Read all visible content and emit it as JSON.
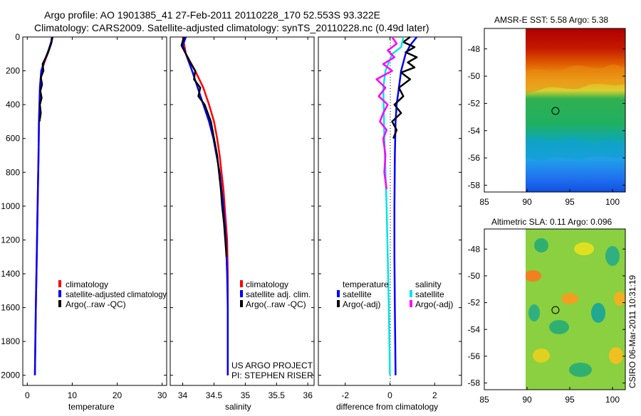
{
  "header": {
    "line1": "Argo profile: AO 1901385_41 27-Feb-2011 20110228_170 52.553S 93.322E",
    "line2": "Climatology: CARS2009. Satellite-adjusted climatology: synTS_20110228.nc (0.49d later)"
  },
  "credits": {
    "project": "US ARGO PROJECT",
    "pi": "PI: STEPHEN RISER",
    "stamp": "CSIRO 06-Mar-2011 10:31:19"
  },
  "colors": {
    "climatology": "#ff0000",
    "satellite": "#0000ff",
    "argo": "#000000",
    "salinity_sat": "#00e5e5",
    "salinity_argo": "#ff00ff"
  },
  "chart_data": [
    {
      "type": "line",
      "title": "",
      "xlabel": "temperature",
      "ylabel": "",
      "xlim": [
        -1,
        31
      ],
      "ylim": [
        2060,
        0
      ],
      "xticks": [
        0,
        10,
        20,
        30
      ],
      "yticks": [
        0,
        200,
        400,
        600,
        800,
        1000,
        1200,
        1400,
        1600,
        1800,
        2000
      ],
      "legend": [
        "climatology",
        "satellite-adjusted climatology",
        "Argo(..raw -QC)"
      ],
      "series": [
        {
          "name": "climatology",
          "color": "#ff0000",
          "depth": [
            0,
            30,
            80,
            150,
            200,
            300,
            400,
            500,
            700,
            1000,
            1300,
            1600,
            2000
          ],
          "values": [
            5.6,
            5.4,
            4.8,
            3.8,
            3.2,
            2.9,
            2.7,
            2.6,
            2.5,
            2.3,
            2.1,
            1.9,
            1.7
          ]
        },
        {
          "name": "satellite-adjusted climatology",
          "color": "#0000ff",
          "depth": [
            0,
            30,
            80,
            150,
            200,
            300,
            400,
            500,
            700,
            1000,
            1300,
            1600,
            2000
          ],
          "values": [
            5.5,
            5.3,
            4.7,
            3.7,
            3.1,
            2.8,
            2.7,
            2.6,
            2.5,
            2.3,
            2.1,
            1.9,
            1.7
          ]
        },
        {
          "name": "Argo(..raw -QC)",
          "color": "#000000",
          "depth": [
            0,
            40,
            100,
            160,
            200,
            240,
            280,
            320,
            360,
            400,
            450,
            500
          ],
          "values": [
            5.6,
            5.3,
            4.5,
            3.4,
            3.6,
            3.0,
            3.3,
            2.9,
            3.2,
            2.8,
            3.0,
            2.7
          ]
        }
      ]
    },
    {
      "type": "line",
      "title": "",
      "xlabel": "salinity",
      "ylabel": "",
      "xlim": [
        33.8,
        36.1
      ],
      "ylim": [
        2060,
        0
      ],
      "xticks": [
        34,
        34.5,
        35,
        35.5,
        36
      ],
      "xtick_labels": [
        "34",
        "34.5",
        "35",
        "35.5",
        "36"
      ],
      "legend": [
        "climatology",
        "satellite adj. clim.",
        "Argo(..raw -QC)"
      ],
      "series": [
        {
          "name": "climatology",
          "color": "#ff0000",
          "depth": [
            0,
            100,
            200,
            300,
            400,
            500,
            600,
            700,
            800,
            900,
            1000,
            1100,
            1200,
            1400,
            1600,
            1800,
            2000
          ],
          "values": [
            34.0,
            34.05,
            34.2,
            34.33,
            34.42,
            34.5,
            34.55,
            34.59,
            34.62,
            34.65,
            34.67,
            34.69,
            34.71,
            34.72,
            34.72,
            34.72,
            34.72
          ]
        },
        {
          "name": "satellite adj. clim.",
          "color": "#0000ff",
          "depth": [
            0,
            50,
            100,
            200,
            300,
            400,
            500,
            600,
            700,
            800,
            900,
            1000,
            1100,
            1200,
            1400,
            1600,
            1800,
            2000
          ],
          "values": [
            34.05,
            34.0,
            34.05,
            34.15,
            34.24,
            34.33,
            34.42,
            34.49,
            34.54,
            34.59,
            34.62,
            34.65,
            34.67,
            34.69,
            34.71,
            34.72,
            34.72,
            34.72
          ]
        },
        {
          "name": "Argo(..raw -QC)",
          "color": "#000000",
          "depth": [
            0,
            50,
            100,
            150,
            200,
            250,
            300,
            350,
            400,
            500,
            600,
            700,
            800,
            900,
            1000,
            1100,
            1200,
            1300
          ],
          "values": [
            34.02,
            33.98,
            34.05,
            34.12,
            34.2,
            34.18,
            34.28,
            34.25,
            34.35,
            34.45,
            34.5,
            34.55,
            34.58,
            34.61,
            34.63,
            34.66,
            34.68,
            34.7
          ]
        }
      ]
    },
    {
      "type": "line",
      "title": "",
      "xlabel": "difference from climatology",
      "ylabel": "",
      "xlim": [
        -3.2,
        3.2
      ],
      "ylim": [
        2060,
        0
      ],
      "xticks": [
        -2,
        0,
        2
      ],
      "legend": [
        "temperature",
        "satellite",
        "Argo(-adj)",
        "salinity",
        "satellite",
        "Argo(-adj)"
      ],
      "series": [
        {
          "name": "temperature satellite",
          "color": "#0000ff",
          "depth": [
            0,
            50,
            100,
            200,
            300,
            400,
            500,
            700,
            1000,
            1300,
            1600,
            2000
          ],
          "values": [
            1.2,
            0.9,
            0.7,
            0.5,
            0.4,
            0.3,
            0.25,
            0.22,
            0.2,
            0.2,
            0.22,
            0.25
          ]
        },
        {
          "name": "temperature Argo(-adj)",
          "color": "#000000",
          "depth": [
            0,
            30,
            60,
            90,
            120,
            150,
            180,
            210,
            250,
            300,
            350,
            400,
            450,
            500,
            550,
            600
          ],
          "values": [
            0.9,
            0.6,
            1.1,
            0.7,
            1.2,
            0.8,
            1.1,
            0.5,
            0.9,
            0.4,
            0.6,
            0.2,
            0.5,
            0.1,
            0.3,
            0.15
          ]
        },
        {
          "name": "salinity satellite",
          "color": "#00e5e5",
          "depth": [
            0,
            60,
            100,
            200,
            300,
            400,
            600,
            800,
            1000,
            1300,
            1600,
            2000
          ],
          "values": [
            0.6,
            0.5,
            0.1,
            -0.2,
            -0.3,
            -0.28,
            -0.25,
            -0.2,
            -0.15,
            -0.1,
            -0.05,
            0.0
          ]
        },
        {
          "name": "salinity Argo(-adj)",
          "color": "#ff00ff",
          "depth": [
            0,
            40,
            80,
            120,
            160,
            200,
            250,
            300,
            350,
            400,
            450,
            500,
            550,
            600,
            700,
            800,
            900
          ],
          "values": [
            0.1,
            0.3,
            -0.1,
            0.2,
            -0.3,
            0.1,
            -0.6,
            -0.2,
            -0.5,
            -0.1,
            -0.3,
            -0.45,
            -0.15,
            -0.3,
            -0.2,
            -0.25,
            -0.15
          ]
        }
      ]
    },
    {
      "type": "heatmap",
      "title": "AMSR-E SST: 5.58 Argo: 5.38",
      "xlabel": "",
      "ylabel": "",
      "xlim": [
        85,
        101.5
      ],
      "ylim": [
        -58.5,
        -46.5
      ],
      "xticks": [
        85,
        90,
        95,
        100
      ],
      "yticks": [
        -48,
        -50,
        -52,
        -54,
        -56,
        -58
      ],
      "marker": {
        "lon": 93.322,
        "lat": -52.553
      }
    },
    {
      "type": "heatmap",
      "title": "Altimetric SLA: 0.11 Argo: 0.096",
      "xlabel": "",
      "ylabel": "",
      "xlim": [
        85,
        101.5
      ],
      "ylim": [
        -58.5,
        -46.5
      ],
      "xticks": [
        85,
        90,
        95,
        100
      ],
      "yticks": [
        -48,
        -50,
        -52,
        -54,
        -56,
        -58
      ],
      "marker": {
        "lon": 93.322,
        "lat": -52.553
      }
    }
  ]
}
